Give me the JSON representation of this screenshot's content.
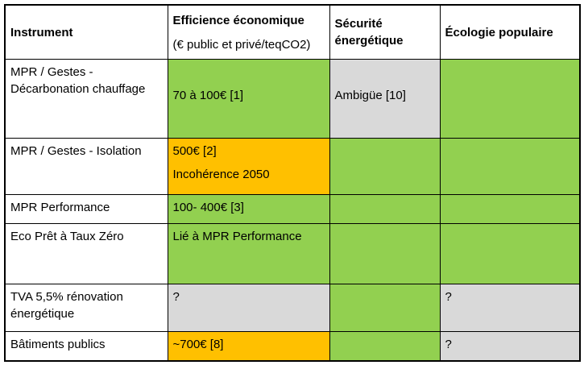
{
  "table": {
    "colors": {
      "green": "#92D050",
      "orange": "#FFC000",
      "gray": "#D9D9D9",
      "border": "#000000",
      "background": "#FFFFFF"
    },
    "header": {
      "col1": "Instrument",
      "col2_title": "Efficience économique",
      "col2_subtitle": "(€ public et privé/teqCO2)",
      "col3": "Sécurité énergétique",
      "col4": "Écologie populaire"
    },
    "rows": [
      {
        "instrument": "MPR / Gestes - Décarbonation chauffage",
        "cells": [
          {
            "lines": [
              "",
              "70 à 100€ [1]"
            ],
            "bg": "green"
          },
          {
            "lines": [
              "",
              "Ambigüe [10]"
            ],
            "bg": "gray"
          },
          {
            "lines": [],
            "bg": "green"
          }
        ]
      },
      {
        "instrument": "MPR / Gestes - Isolation",
        "cells": [
          {
            "lines": [
              "500€ [2]",
              "Incohérence 2050"
            ],
            "bg": "orange"
          },
          {
            "lines": [],
            "bg": "green"
          },
          {
            "lines": [],
            "bg": "green"
          }
        ]
      },
      {
        "instrument": "MPR Performance",
        "cells": [
          {
            "lines": [
              "100- 400€ [3]"
            ],
            "bg": "green"
          },
          {
            "lines": [],
            "bg": "green"
          },
          {
            "lines": [],
            "bg": "green"
          }
        ]
      },
      {
        "instrument": "Eco Prêt à Taux Zéro",
        "cells": [
          {
            "lines": [
              "Lié à MPR Performance"
            ],
            "bg": "green"
          },
          {
            "lines": [],
            "bg": "green"
          },
          {
            "lines": [],
            "bg": "green"
          }
        ]
      },
      {
        "instrument": "TVA 5,5% rénovation énergétique",
        "cells": [
          {
            "lines": [
              "?"
            ],
            "bg": "gray"
          },
          {
            "lines": [],
            "bg": "green"
          },
          {
            "lines": [
              "?"
            ],
            "bg": "gray"
          }
        ]
      },
      {
        "instrument": "Bâtiments publics",
        "cells": [
          {
            "lines": [
              "~700€ [8]"
            ],
            "bg": "orange"
          },
          {
            "lines": [],
            "bg": "green"
          },
          {
            "lines": [
              "?"
            ],
            "bg": "gray"
          }
        ]
      }
    ]
  }
}
